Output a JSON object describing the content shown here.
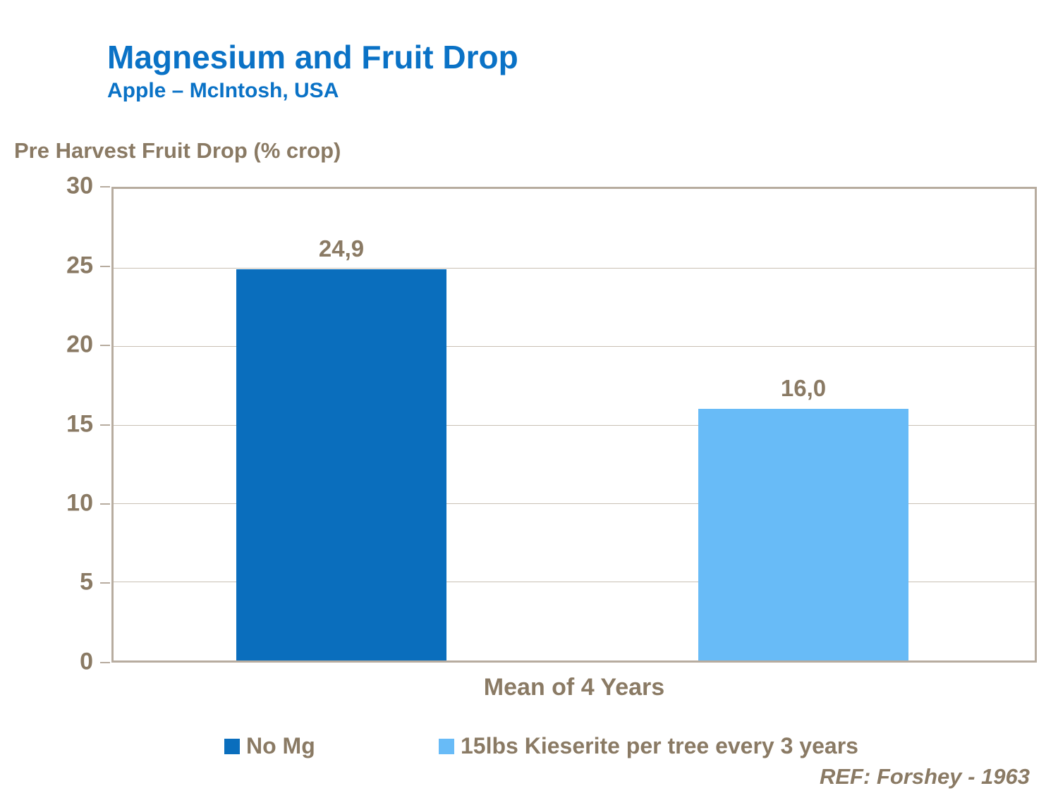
{
  "header": {
    "title": "Magnesium and Fruit Drop",
    "subtitle": "Apple – McIntosh, USA"
  },
  "chart_data": {
    "type": "bar",
    "title": "Magnesium and Fruit Drop",
    "subtitle": "Apple – McIntosh, USA",
    "axis_title": "Pre Harvest Fruit Drop (% crop)",
    "categories": [
      "Mean of 4 Years"
    ],
    "series": [
      {
        "name": "No Mg",
        "values": [
          24.9
        ],
        "label": "24,9",
        "color": "#0a6ebd"
      },
      {
        "name": "15lbs Kieserite per tree every 3 years",
        "values": [
          16.0
        ],
        "label": "16,0",
        "color": "#68bbf7"
      }
    ],
    "xlabel": "Mean of 4 Years",
    "ylabel": "Pre Harvest Fruit Drop (% crop)",
    "ylim": [
      0,
      30
    ],
    "yticks": [
      30,
      25,
      20,
      15,
      10,
      5,
      0
    ],
    "grid": true,
    "legend_position": "bottom",
    "reference": "REF: Forshey - 1963"
  },
  "colors": {
    "title_blue": "#0a72c6",
    "text_brown": "#8a7a64",
    "axis_tan": "#b7ac9f",
    "gridline": "#c9c0b4"
  }
}
